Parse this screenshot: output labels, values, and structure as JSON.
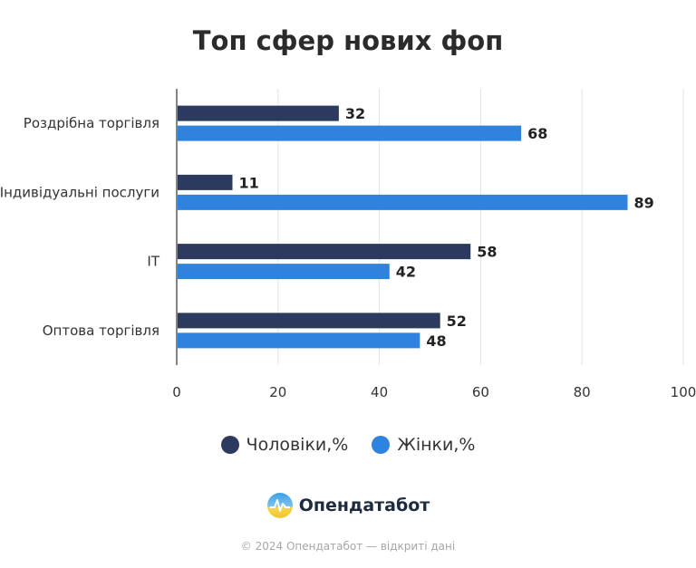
{
  "chart_data": {
    "type": "bar",
    "orientation": "horizontal",
    "title": "Топ сфер нових фоп",
    "categories": [
      "Роздрібна торгівля",
      "Індивідуальні послуги",
      "ІТ",
      "Оптова торгівля"
    ],
    "series": [
      {
        "name": "Чоловіки,%",
        "values": [
          32,
          11,
          58,
          52
        ],
        "color": "#2b3a5e"
      },
      {
        "name": "Жінки,%",
        "values": [
          68,
          89,
          42,
          48
        ],
        "color": "#2f82dd"
      }
    ],
    "xlim": [
      0,
      100
    ],
    "x_ticks": [
      "0",
      "20",
      "40",
      "60",
      "80",
      "100"
    ],
    "grid": true,
    "legend": "bottom"
  },
  "brand": {
    "name": "Опендатабот"
  },
  "footer": {
    "text": "© 2024 Опендатабот — відкриті дані"
  }
}
